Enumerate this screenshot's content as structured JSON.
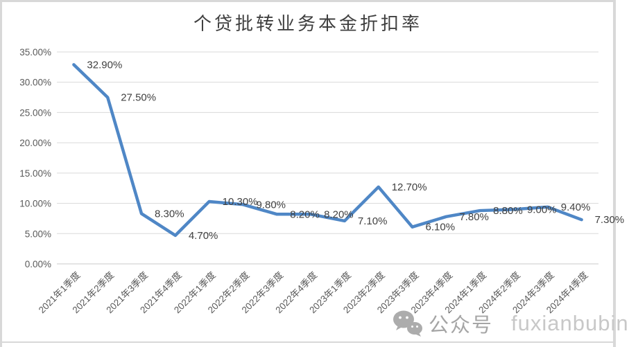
{
  "window": {
    "border_color": "#D8D8D8"
  },
  "chart_data": {
    "type": "line",
    "title": "个贷批转业务本金折扣率",
    "categories": [
      "2021年1季度",
      "2021年2季度",
      "2021年3季度",
      "2021年4季度",
      "2022年1季度",
      "2022年2季度",
      "2022年3季度",
      "2022年4季度",
      "2023年1季度",
      "2023年2季度",
      "2023年3季度",
      "2023年4季度",
      "2024年1季度",
      "2024年2季度",
      "2024年3季度",
      "2024年4季度"
    ],
    "values": [
      32.9,
      27.5,
      8.3,
      4.7,
      10.3,
      9.8,
      8.2,
      8.2,
      7.1,
      12.7,
      6.1,
      7.8,
      8.8,
      9.0,
      9.4,
      7.3
    ],
    "data_labels": [
      "32.90%",
      "27.50%",
      "8.30%",
      "4.70%",
      "10.30%",
      "9.80%",
      "8.20%",
      "8.20%",
      "7.10%",
      "12.70%",
      "6.10%",
      "7.80%",
      "8.80%",
      "9.00%",
      "9.40%",
      "7.30%"
    ],
    "y_tick_labels": [
      "35.00%",
      "30.00%",
      "25.00%",
      "20.00%",
      "15.00%",
      "10.00%",
      "5.00%",
      "0.00%"
    ],
    "ylim": [
      0,
      35
    ],
    "y_step": 5,
    "grid": true,
    "legend": "none",
    "xlabel": "",
    "ylabel": "",
    "line_color": "#4F87C6",
    "label_color": "#404040",
    "axis_text_color": "#595959",
    "gridline_color": "#D9D9D9",
    "axis_line_color": "#C9C9C9"
  },
  "watermark": {
    "icon": "wechat-icon",
    "text_cn": "公众号",
    "text_latin": "fuxianbubin"
  }
}
